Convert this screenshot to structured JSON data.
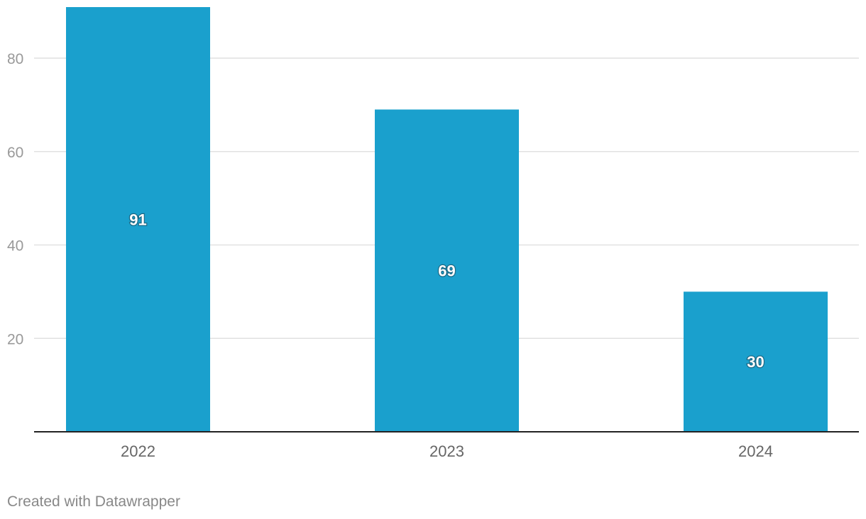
{
  "chart_data": {
    "type": "bar",
    "categories": [
      "2022",
      "2023",
      "2024"
    ],
    "values": [
      91,
      69,
      30
    ],
    "data_labels": [
      "91",
      "69",
      "30"
    ],
    "y_ticks": [
      20,
      40,
      60,
      80
    ],
    "ylim": [
      0,
      91
    ],
    "grid": true,
    "bar_color": "#1aa0cd",
    "grid_color": "#e1e1e1",
    "axis_color": "#222222",
    "tick_label_color": "#999999",
    "category_label_color": "#666666",
    "data_label_color": "#ffffff"
  },
  "footer": {
    "credit": "Created with Datawrapper"
  }
}
